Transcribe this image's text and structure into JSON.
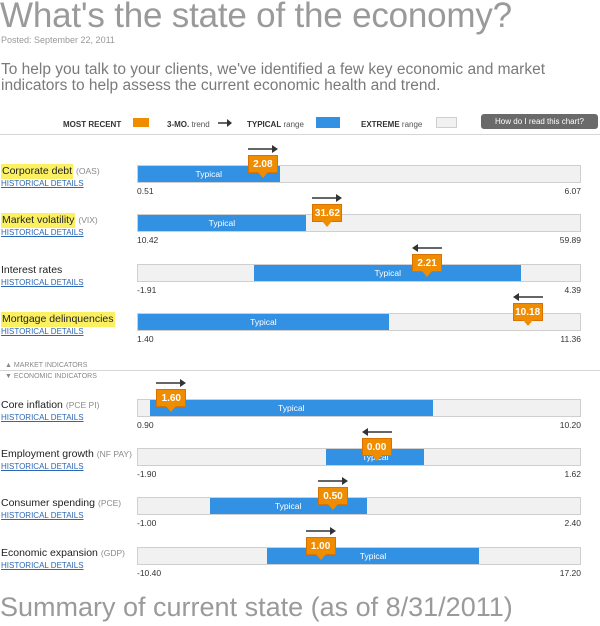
{
  "header": {
    "title": "What's the state of the economy?",
    "posted": "Posted: September 22, 2011",
    "intro": "To help you talk to your clients, we've identified a few key economic and market indicators to help assess the current economic health and trend."
  },
  "legend": {
    "most_recent": "MOST RECENT",
    "trend_bold": "3-MO.",
    "trend_small": "trend",
    "typical_bold": "TYPICAL",
    "typical_small": "range",
    "extreme_bold": "EXTREME",
    "extreme_small": "range",
    "help_button": "How do I read this chart?"
  },
  "sections": {
    "market": "MARKET INDICATORS",
    "economic": "ECONOMIC INDICATORS"
  },
  "summary": "Summary of current state (as of 8/31/2011)",
  "colors": {
    "typical": "#3391e3",
    "marker": "#f08c00",
    "extreme": "#f1f1f1",
    "highlight": "#fbf062"
  },
  "chart_data": {
    "type": "range-indicator",
    "typical_label": "Typical",
    "historical_link": "HISTORICAL DETAILS",
    "indicators": [
      {
        "name": "Corporate debt",
        "code": "(OAS)",
        "highlight": true,
        "group": "market",
        "min_label": "0.51",
        "max_label": "6.07",
        "min": 0.51,
        "max": 6.07,
        "typical": [
          0.51,
          2.29
        ],
        "value": 2.08,
        "value_label": "2.08",
        "trend": "up"
      },
      {
        "name": "Market volatility",
        "code": "(VIX)",
        "highlight": true,
        "group": "market",
        "min_label": "10.42",
        "max_label": "59.89",
        "min": 10.42,
        "max": 59.89,
        "typical": [
          10.42,
          29.2
        ],
        "value": 31.62,
        "value_label": "31.62",
        "trend": "up"
      },
      {
        "name": "Interest rates",
        "code": "",
        "highlight": false,
        "group": "market",
        "min_label": "-1.91",
        "max_label": "4.39",
        "min": -1.91,
        "max": 4.39,
        "typical": [
          -0.25,
          3.55
        ],
        "value": 2.21,
        "value_label": "2.21",
        "trend": "down"
      },
      {
        "name": "Mortgage delinquencies",
        "code": "",
        "highlight": true,
        "group": "market",
        "min_label": "1.40",
        "max_label": "11.36",
        "min": 1.4,
        "max": 11.36,
        "typical": [
          1.4,
          7.05
        ],
        "value": 10.18,
        "value_label": "10.18",
        "trend": "down"
      },
      {
        "name": "Core inflation",
        "code": "(PCE PI)",
        "highlight": false,
        "group": "economic",
        "min_label": "0.90",
        "max_label": "10.20",
        "min": 0.9,
        "max": 10.2,
        "typical": [
          1.15,
          7.1
        ],
        "value": 1.6,
        "value_label": "1.60",
        "trend": "up"
      },
      {
        "name": "Employment growth",
        "code": "(NF PAY)",
        "highlight": false,
        "group": "economic",
        "min_label": "-1.90",
        "max_label": "1.62",
        "min": -1.9,
        "max": 1.62,
        "typical": [
          -0.4,
          0.38
        ],
        "value": 0.0,
        "value_label": "0.00",
        "trend": "down"
      },
      {
        "name": "Consumer spending",
        "code": "(PCE)",
        "highlight": false,
        "group": "economic",
        "min_label": "-1.00",
        "max_label": "2.40",
        "min": -1.0,
        "max": 2.4,
        "typical": [
          -0.45,
          0.76
        ],
        "value": 0.5,
        "value_label": "0.50",
        "trend": "up"
      },
      {
        "name": "Economic expansion",
        "code": "(GDP)",
        "highlight": false,
        "group": "economic",
        "min_label": "-10.40",
        "max_label": "17.20",
        "min": -10.4,
        "max": 17.2,
        "typical": [
          -2.35,
          10.9
        ],
        "value": 1.0,
        "value_label": "1.00",
        "trend": "up"
      }
    ]
  }
}
